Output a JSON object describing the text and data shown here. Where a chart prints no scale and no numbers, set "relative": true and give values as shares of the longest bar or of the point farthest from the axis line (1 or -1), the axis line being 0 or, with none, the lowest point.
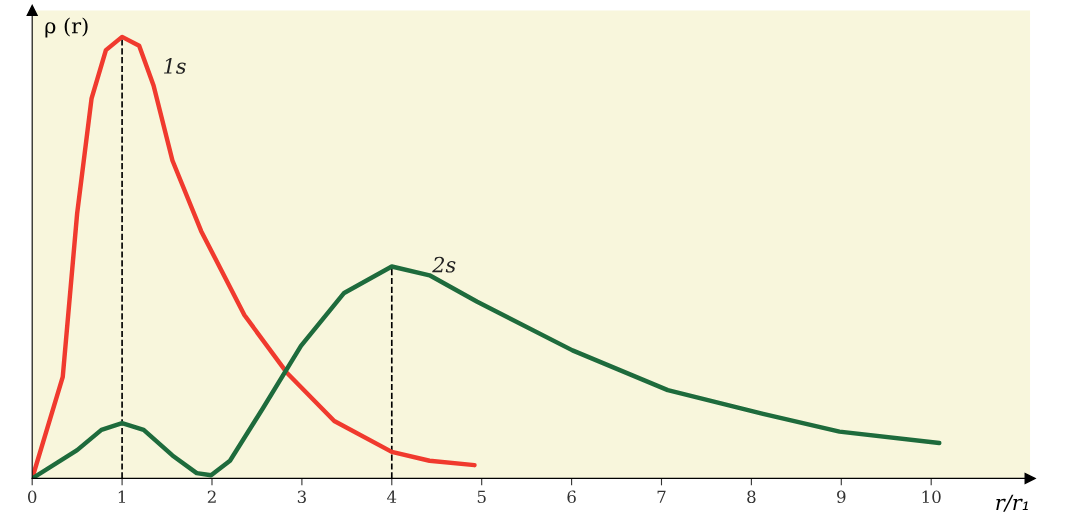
{
  "chart_data": {
    "type": "line",
    "relative": true,
    "xlabel": "r/r₁",
    "ylabel": "ρ (r)",
    "xlim": [
      0,
      11.1
    ],
    "xticks": [
      0,
      1,
      2,
      3,
      4,
      5,
      6,
      7,
      8,
      9,
      10
    ],
    "grid": false,
    "legend": false,
    "marker": "none",
    "line_style": "solid",
    "series": [
      {
        "name": "1s",
        "color": "#f03a2e",
        "x": [
          0,
          0.34,
          0.5,
          0.66,
          0.82,
          1.0,
          1.19,
          1.35,
          1.56,
          1.88,
          2.36,
          2.83,
          3.36,
          4.0,
          4.42,
          4.92
        ],
        "values": [
          0,
          0.23,
          0.6,
          0.86,
          0.97,
          1,
          0.98,
          0.89,
          0.72,
          0.56,
          0.37,
          0.24,
          0.13,
          0.06,
          0.04,
          0.03
        ]
      },
      {
        "name": "2s",
        "color": "#1e6b3c",
        "x": [
          0,
          0.5,
          0.77,
          1.0,
          1.24,
          1.56,
          1.83,
          1.99,
          2.2,
          2.57,
          2.99,
          3.47,
          4.0,
          4.42,
          4.95,
          6.01,
          7.07,
          8.13,
          8.98,
          10.09
        ],
        "values": [
          0,
          0.064,
          0.11,
          0.125,
          0.11,
          0.052,
          0.012,
          0.007,
          0.04,
          0.16,
          0.3,
          0.42,
          0.48,
          0.46,
          0.4,
          0.29,
          0.2,
          0.146,
          0.106,
          0.08
        ]
      }
    ],
    "ref_lines": [
      {
        "axis": "x",
        "value": 1,
        "color": "#000000",
        "line_style": "dashed"
      },
      {
        "axis": "x",
        "value": 4,
        "color": "#000000",
        "line_style": "dashed"
      }
    ]
  }
}
